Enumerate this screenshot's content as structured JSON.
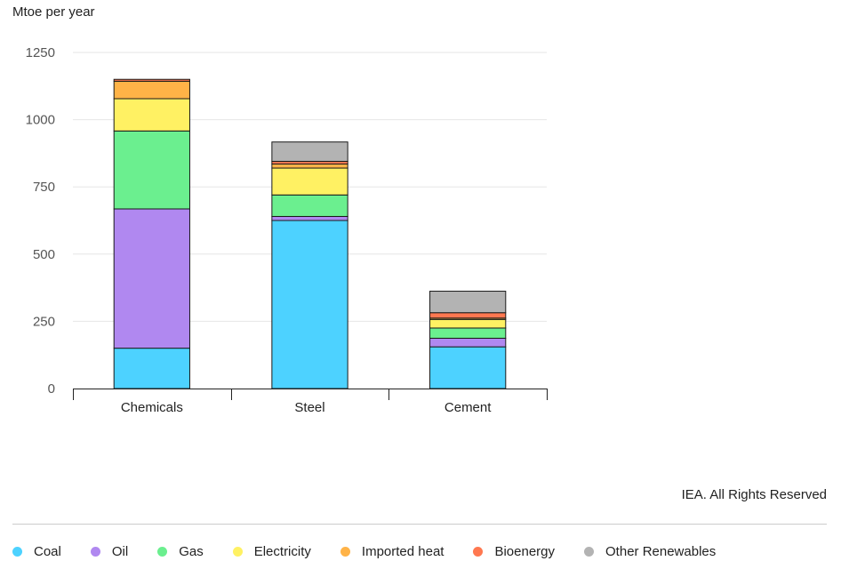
{
  "chart_data": {
    "type": "bar",
    "stacked": true,
    "ylabel": "Mtoe per year",
    "ylim": [
      0,
      1250
    ],
    "yticks": [
      0,
      250,
      500,
      750,
      1000,
      1250
    ],
    "grid": true,
    "legend_position": "bottom",
    "categories": [
      "Chemicals",
      "Steel",
      "Cement"
    ],
    "series": [
      {
        "name": "Coal",
        "color": "#4dd2ff",
        "values": [
          150,
          625,
          155
        ]
      },
      {
        "name": "Oil",
        "color": "#b088f0",
        "values": [
          518,
          15,
          32
        ]
      },
      {
        "name": "Gas",
        "color": "#6bef8f",
        "values": [
          290,
          80,
          38
        ]
      },
      {
        "name": "Electricity",
        "color": "#fff163",
        "values": [
          120,
          100,
          32
        ]
      },
      {
        "name": "Imported heat",
        "color": "#ffb347",
        "values": [
          65,
          15,
          5
        ]
      },
      {
        "name": "Bioenergy",
        "color": "#ff7850",
        "values": [
          7,
          10,
          20
        ]
      },
      {
        "name": "Other Renewables",
        "color": "#b3b3b3",
        "values": [
          0,
          72,
          80
        ]
      }
    ]
  },
  "footer": {
    "credit": "IEA. All Rights Reserved"
  }
}
